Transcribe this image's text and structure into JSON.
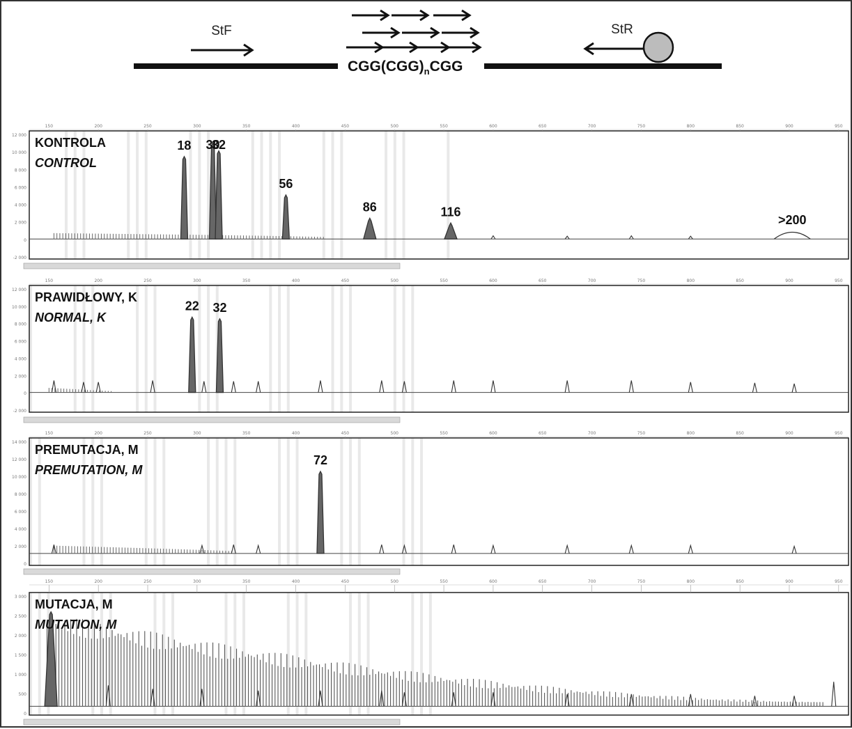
{
  "diagram": {
    "forward_primer_label": "StF",
    "reverse_primer_label": "StR",
    "repeat_label_main": "CGG(CGG)",
    "repeat_label_sub": "n",
    "repeat_label_end": "CGG",
    "colors": {
      "line": "#111111",
      "bead": "#bcbcbc"
    }
  },
  "chart_data": [
    {
      "type": "line",
      "title": "KONTROLA",
      "subtitle": "CONTROL",
      "x_ticks": [
        150,
        200,
        250,
        300,
        350,
        400,
        450,
        500,
        550,
        600,
        650,
        700,
        750,
        800,
        850,
        900,
        950
      ],
      "y_ticks": [
        "12 000",
        "10 000",
        "8 000",
        "6 000",
        "4 000",
        "2 000",
        "0",
        "-2 000"
      ],
      "xlim": [
        130,
        960
      ],
      "ylim": [
        -2500,
        13500
      ],
      "peaks": [
        {
          "x": 287,
          "y": 10300,
          "label": "18"
        },
        {
          "x": 316,
          "y": 12000,
          "label": "30"
        },
        {
          "x": 322,
          "y": 11000,
          "label": "32"
        },
        {
          "x": 390,
          "y": 5500,
          "label": "56"
        },
        {
          "x": 475,
          "y": 2600,
          "label": "86"
        },
        {
          "x": 557,
          "y": 2000,
          "label": "116"
        },
        {
          "x": 903,
          "y": 1000,
          "label": ">200"
        }
      ],
      "size_standard_peaks": [
        {
          "x": 600,
          "y": 400
        },
        {
          "x": 675,
          "y": 350
        },
        {
          "x": 740,
          "y": 400
        },
        {
          "x": 800,
          "y": 350
        }
      ],
      "stutter_range": [
        155,
        430
      ],
      "stutter_height": 1200,
      "colors": {
        "trace": "#333333",
        "shade": "#e9e9e9"
      }
    },
    {
      "type": "line",
      "title": "PRAWIDŁOWY, K",
      "subtitle": "NORMAL, K",
      "x_ticks": [
        150,
        200,
        250,
        300,
        350,
        400,
        450,
        500,
        550,
        600,
        650,
        700,
        750,
        800,
        850,
        900,
        950
      ],
      "y_ticks": [
        "12 000",
        "10 000",
        "8 000",
        "6 000",
        "4 000",
        "2 000",
        "0",
        "-2 000"
      ],
      "xlim": [
        130,
        960
      ],
      "ylim": [
        -2500,
        13500
      ],
      "peaks": [
        {
          "x": 295,
          "y": 9500,
          "label": "22"
        },
        {
          "x": 323,
          "y": 9300,
          "label": "32"
        }
      ],
      "size_standard_peaks": [
        {
          "x": 155,
          "y": 1500
        },
        {
          "x": 185,
          "y": 1300
        },
        {
          "x": 200,
          "y": 1300
        },
        {
          "x": 255,
          "y": 1500
        },
        {
          "x": 307,
          "y": 1400
        },
        {
          "x": 337,
          "y": 1400
        },
        {
          "x": 362,
          "y": 1400
        },
        {
          "x": 425,
          "y": 1500
        },
        {
          "x": 487,
          "y": 1500
        },
        {
          "x": 510,
          "y": 1400
        },
        {
          "x": 560,
          "y": 1500
        },
        {
          "x": 600,
          "y": 1500
        },
        {
          "x": 675,
          "y": 1500
        },
        {
          "x": 740,
          "y": 1500
        },
        {
          "x": 800,
          "y": 1300
        },
        {
          "x": 865,
          "y": 1200
        },
        {
          "x": 905,
          "y": 1100
        }
      ],
      "stutter_range": [
        150,
        215
      ],
      "stutter_height": 600,
      "colors": {
        "trace": "#333333",
        "shade": "#e9e9e9"
      }
    },
    {
      "type": "line",
      "title": "PREMUTACJA, M",
      "subtitle": "PREMUTATION, M",
      "x_ticks": [
        150,
        200,
        250,
        300,
        350,
        400,
        450,
        500,
        550,
        600,
        650,
        700,
        750,
        800,
        850,
        900,
        950
      ],
      "y_ticks": [
        "14 000",
        "12 000",
        "10 000",
        "8 000",
        "6 000",
        "4 000",
        "2 000",
        "0"
      ],
      "xlim": [
        130,
        960
      ],
      "ylim": [
        -1500,
        14500
      ],
      "peaks": [
        {
          "x": 425,
          "y": 10300,
          "label": "72"
        }
      ],
      "size_standard_peaks": [
        {
          "x": 155,
          "y": 1100
        },
        {
          "x": 305,
          "y": 1000
        },
        {
          "x": 337,
          "y": 1100
        },
        {
          "x": 362,
          "y": 1000
        },
        {
          "x": 487,
          "y": 1100
        },
        {
          "x": 510,
          "y": 1000
        },
        {
          "x": 560,
          "y": 1100
        },
        {
          "x": 600,
          "y": 1000
        },
        {
          "x": 675,
          "y": 1000
        },
        {
          "x": 740,
          "y": 1000
        },
        {
          "x": 800,
          "y": 1000
        },
        {
          "x": 905,
          "y": 900
        }
      ],
      "stutter_range": [
        155,
        335
      ],
      "stutter_height": 1600,
      "colors": {
        "trace": "#333333",
        "shade": "#e9e9e9"
      }
    },
    {
      "type": "line",
      "title": "MUTACJA, M",
      "subtitle": "MUTATION, M",
      "x_ticks": [
        150,
        200,
        250,
        300,
        350,
        400,
        450,
        500,
        550,
        600,
        650,
        700,
        750,
        800,
        850,
        900,
        950
      ],
      "y_ticks": [
        "3 000",
        "2 500",
        "2 000",
        "1 500",
        "1 000",
        "500",
        "0"
      ],
      "xlim": [
        130,
        960
      ],
      "ylim": [
        -250,
        3250
      ],
      "peaks": [
        {
          "x": 152,
          "y": 2700,
          "label": ""
        }
      ],
      "size_standard_peaks": [
        {
          "x": 210,
          "y": 600
        },
        {
          "x": 255,
          "y": 500
        },
        {
          "x": 305,
          "y": 500
        },
        {
          "x": 362,
          "y": 450
        },
        {
          "x": 425,
          "y": 450
        },
        {
          "x": 487,
          "y": 450
        },
        {
          "x": 510,
          "y": 400
        },
        {
          "x": 560,
          "y": 400
        },
        {
          "x": 600,
          "y": 400
        },
        {
          "x": 675,
          "y": 350
        },
        {
          "x": 740,
          "y": 350
        },
        {
          "x": 800,
          "y": 350
        },
        {
          "x": 865,
          "y": 300
        },
        {
          "x": 905,
          "y": 300
        },
        {
          "x": 945,
          "y": 700
        }
      ],
      "smear": {
        "start": 148,
        "end": 935,
        "start_height": 2300,
        "end_height": 120
      },
      "colors": {
        "trace": "#333333",
        "shade": "#e9e9e9"
      }
    }
  ]
}
